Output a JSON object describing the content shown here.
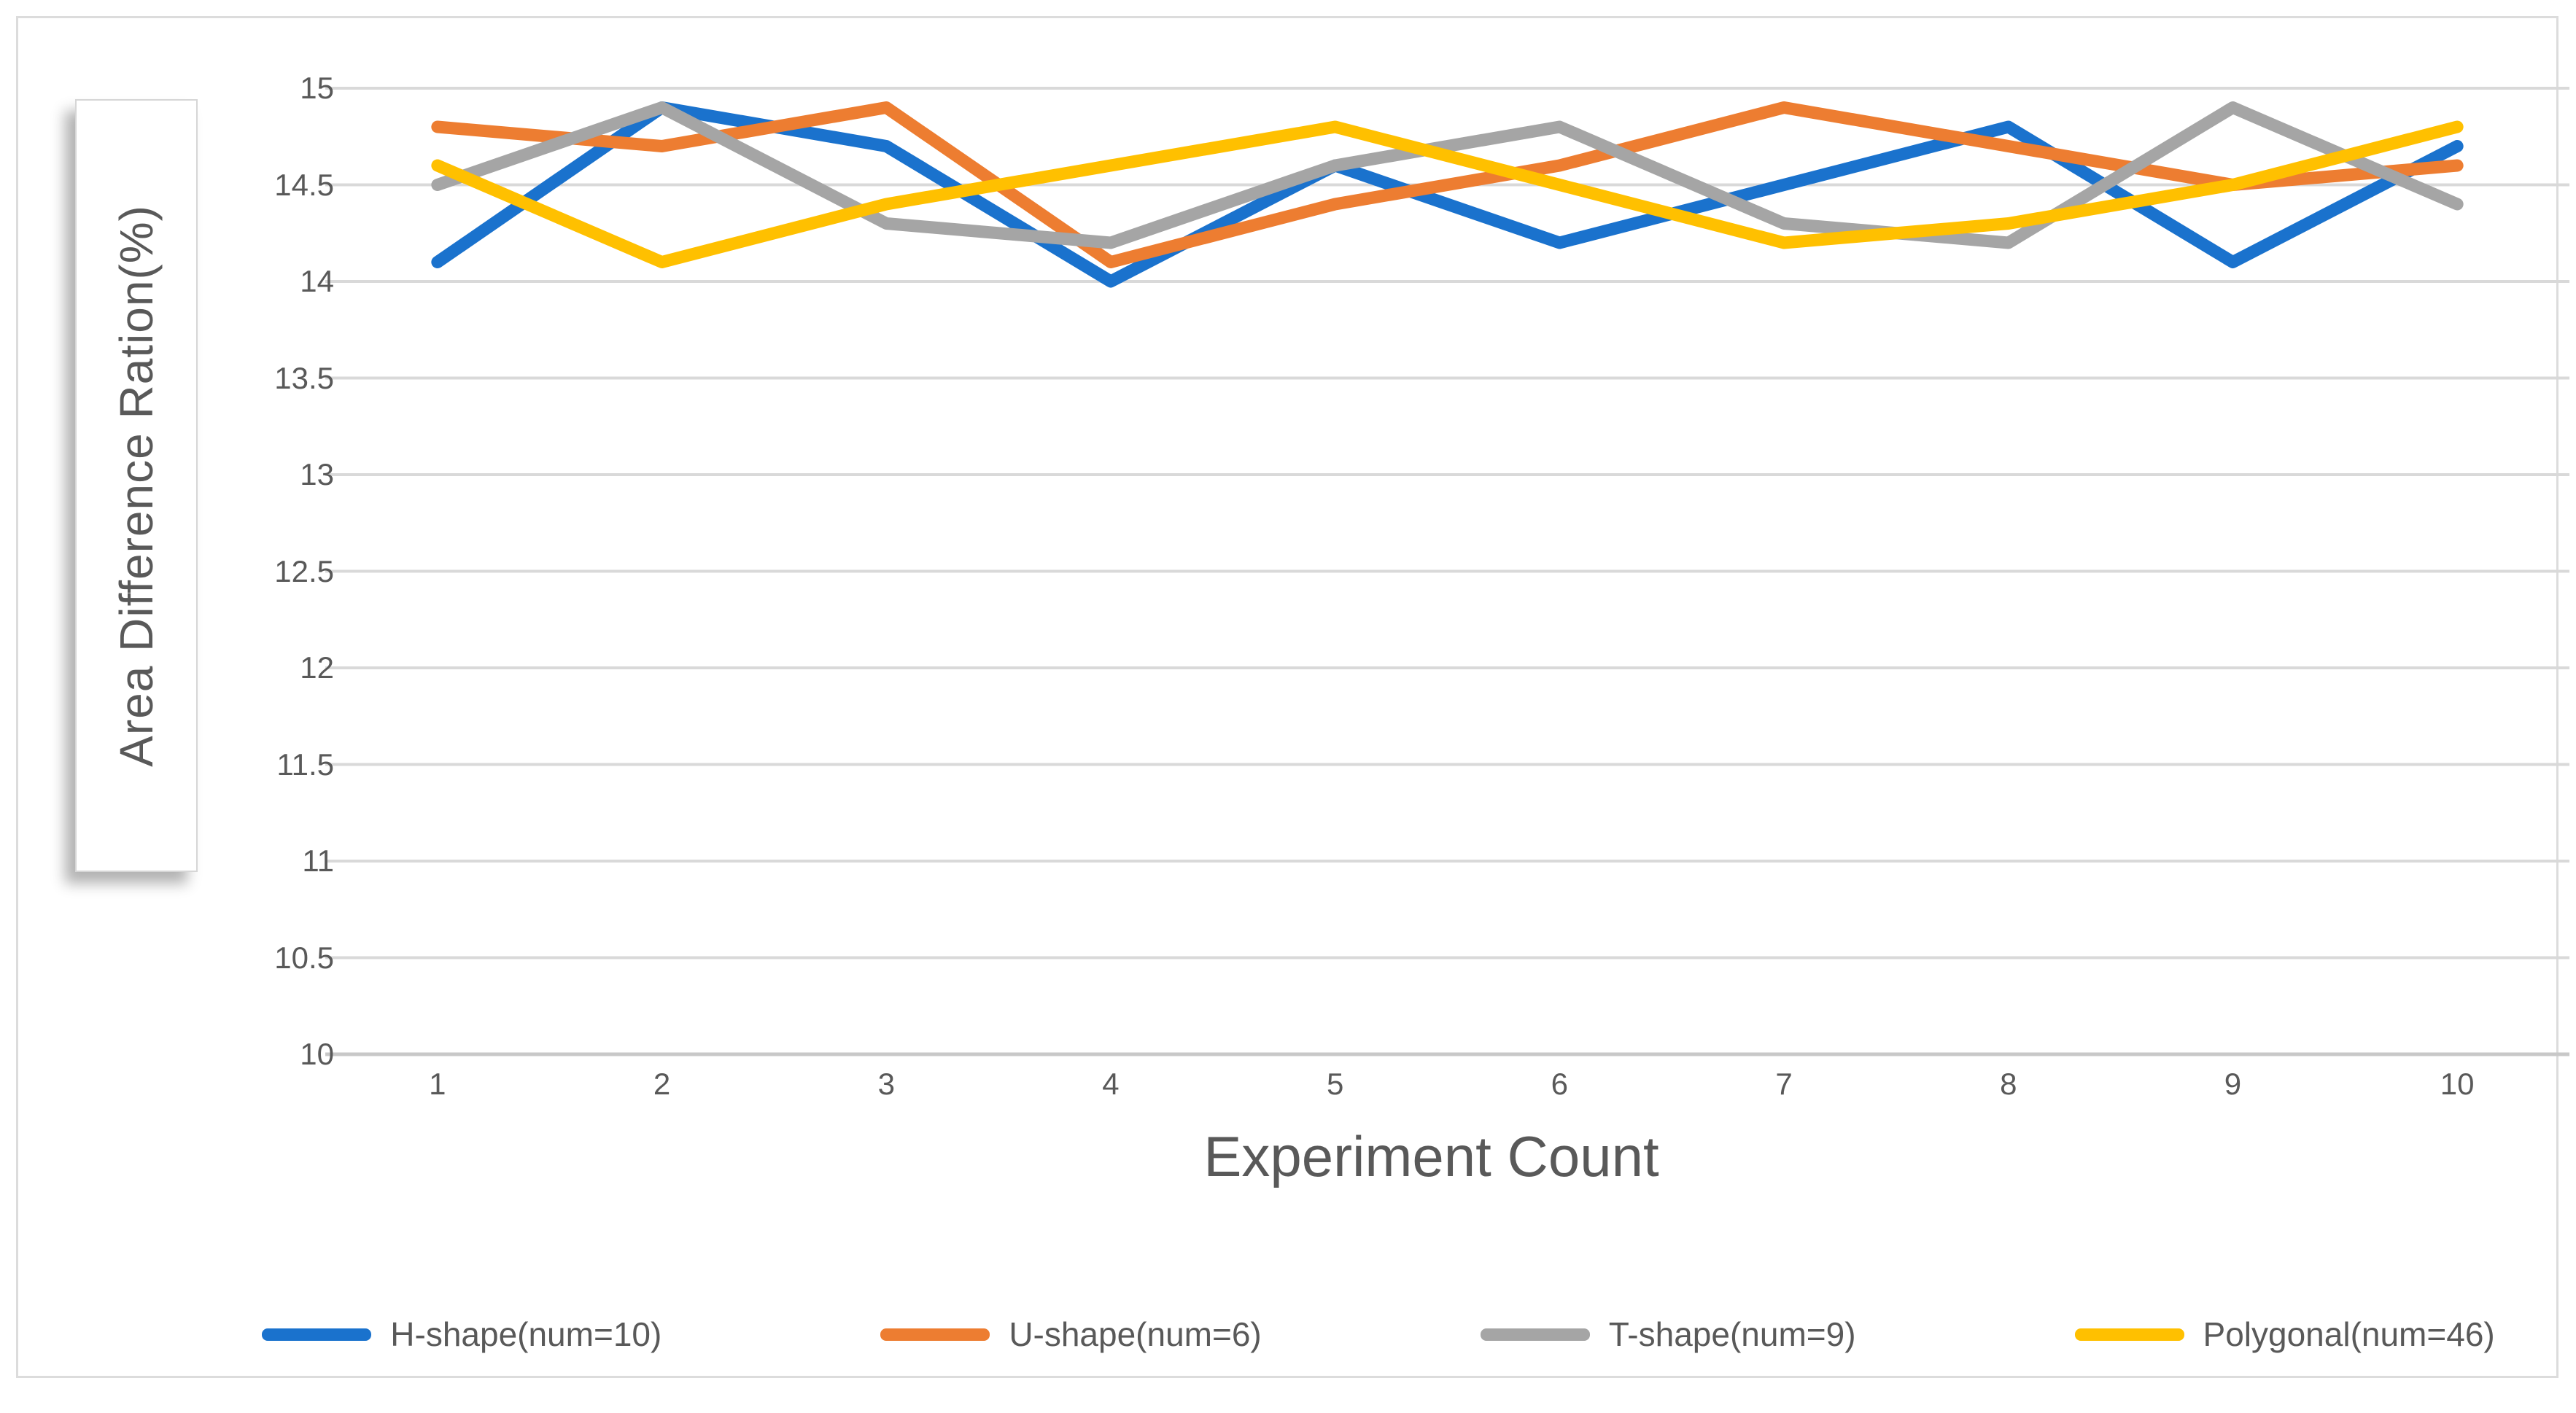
{
  "chart_data": {
    "type": "line",
    "title": "",
    "xlabel": "Experiment Count",
    "ylabel": "Area Difference Ration(%)",
    "x": [
      1,
      2,
      3,
      4,
      5,
      6,
      7,
      8,
      9,
      10
    ],
    "ylim": [
      10,
      15
    ],
    "yticks": [
      15,
      14.5,
      14,
      13.5,
      13,
      12.5,
      12,
      11.5,
      11,
      10.5,
      10
    ],
    "grid": "horizontal",
    "legend_position": "bottom",
    "series": [
      {
        "name": "H-shape(num=10)",
        "color": "#1a72cd",
        "values": [
          14.1,
          14.9,
          14.7,
          14.0,
          14.6,
          14.2,
          14.5,
          14.8,
          14.1,
          14.7
        ]
      },
      {
        "name": "U-shape(num=6)",
        "color": "#ed7d31",
        "values": [
          14.8,
          14.7,
          14.9,
          14.1,
          14.4,
          14.6,
          14.9,
          14.7,
          14.5,
          14.6
        ]
      },
      {
        "name": "T-shape(num=9)",
        "color": "#a5a5a5",
        "values": [
          14.5,
          14.9,
          14.3,
          14.2,
          14.6,
          14.8,
          14.3,
          14.2,
          14.9,
          14.4
        ]
      },
      {
        "name": "Polygonal(num=46)",
        "color": "#ffc000",
        "values": [
          14.6,
          14.1,
          14.4,
          14.6,
          14.8,
          14.5,
          14.2,
          14.3,
          14.5,
          14.8
        ]
      }
    ],
    "colors": {
      "gridline": "#d9d9d9",
      "axis_line": "#c8c8c8",
      "text": "#595959"
    }
  }
}
